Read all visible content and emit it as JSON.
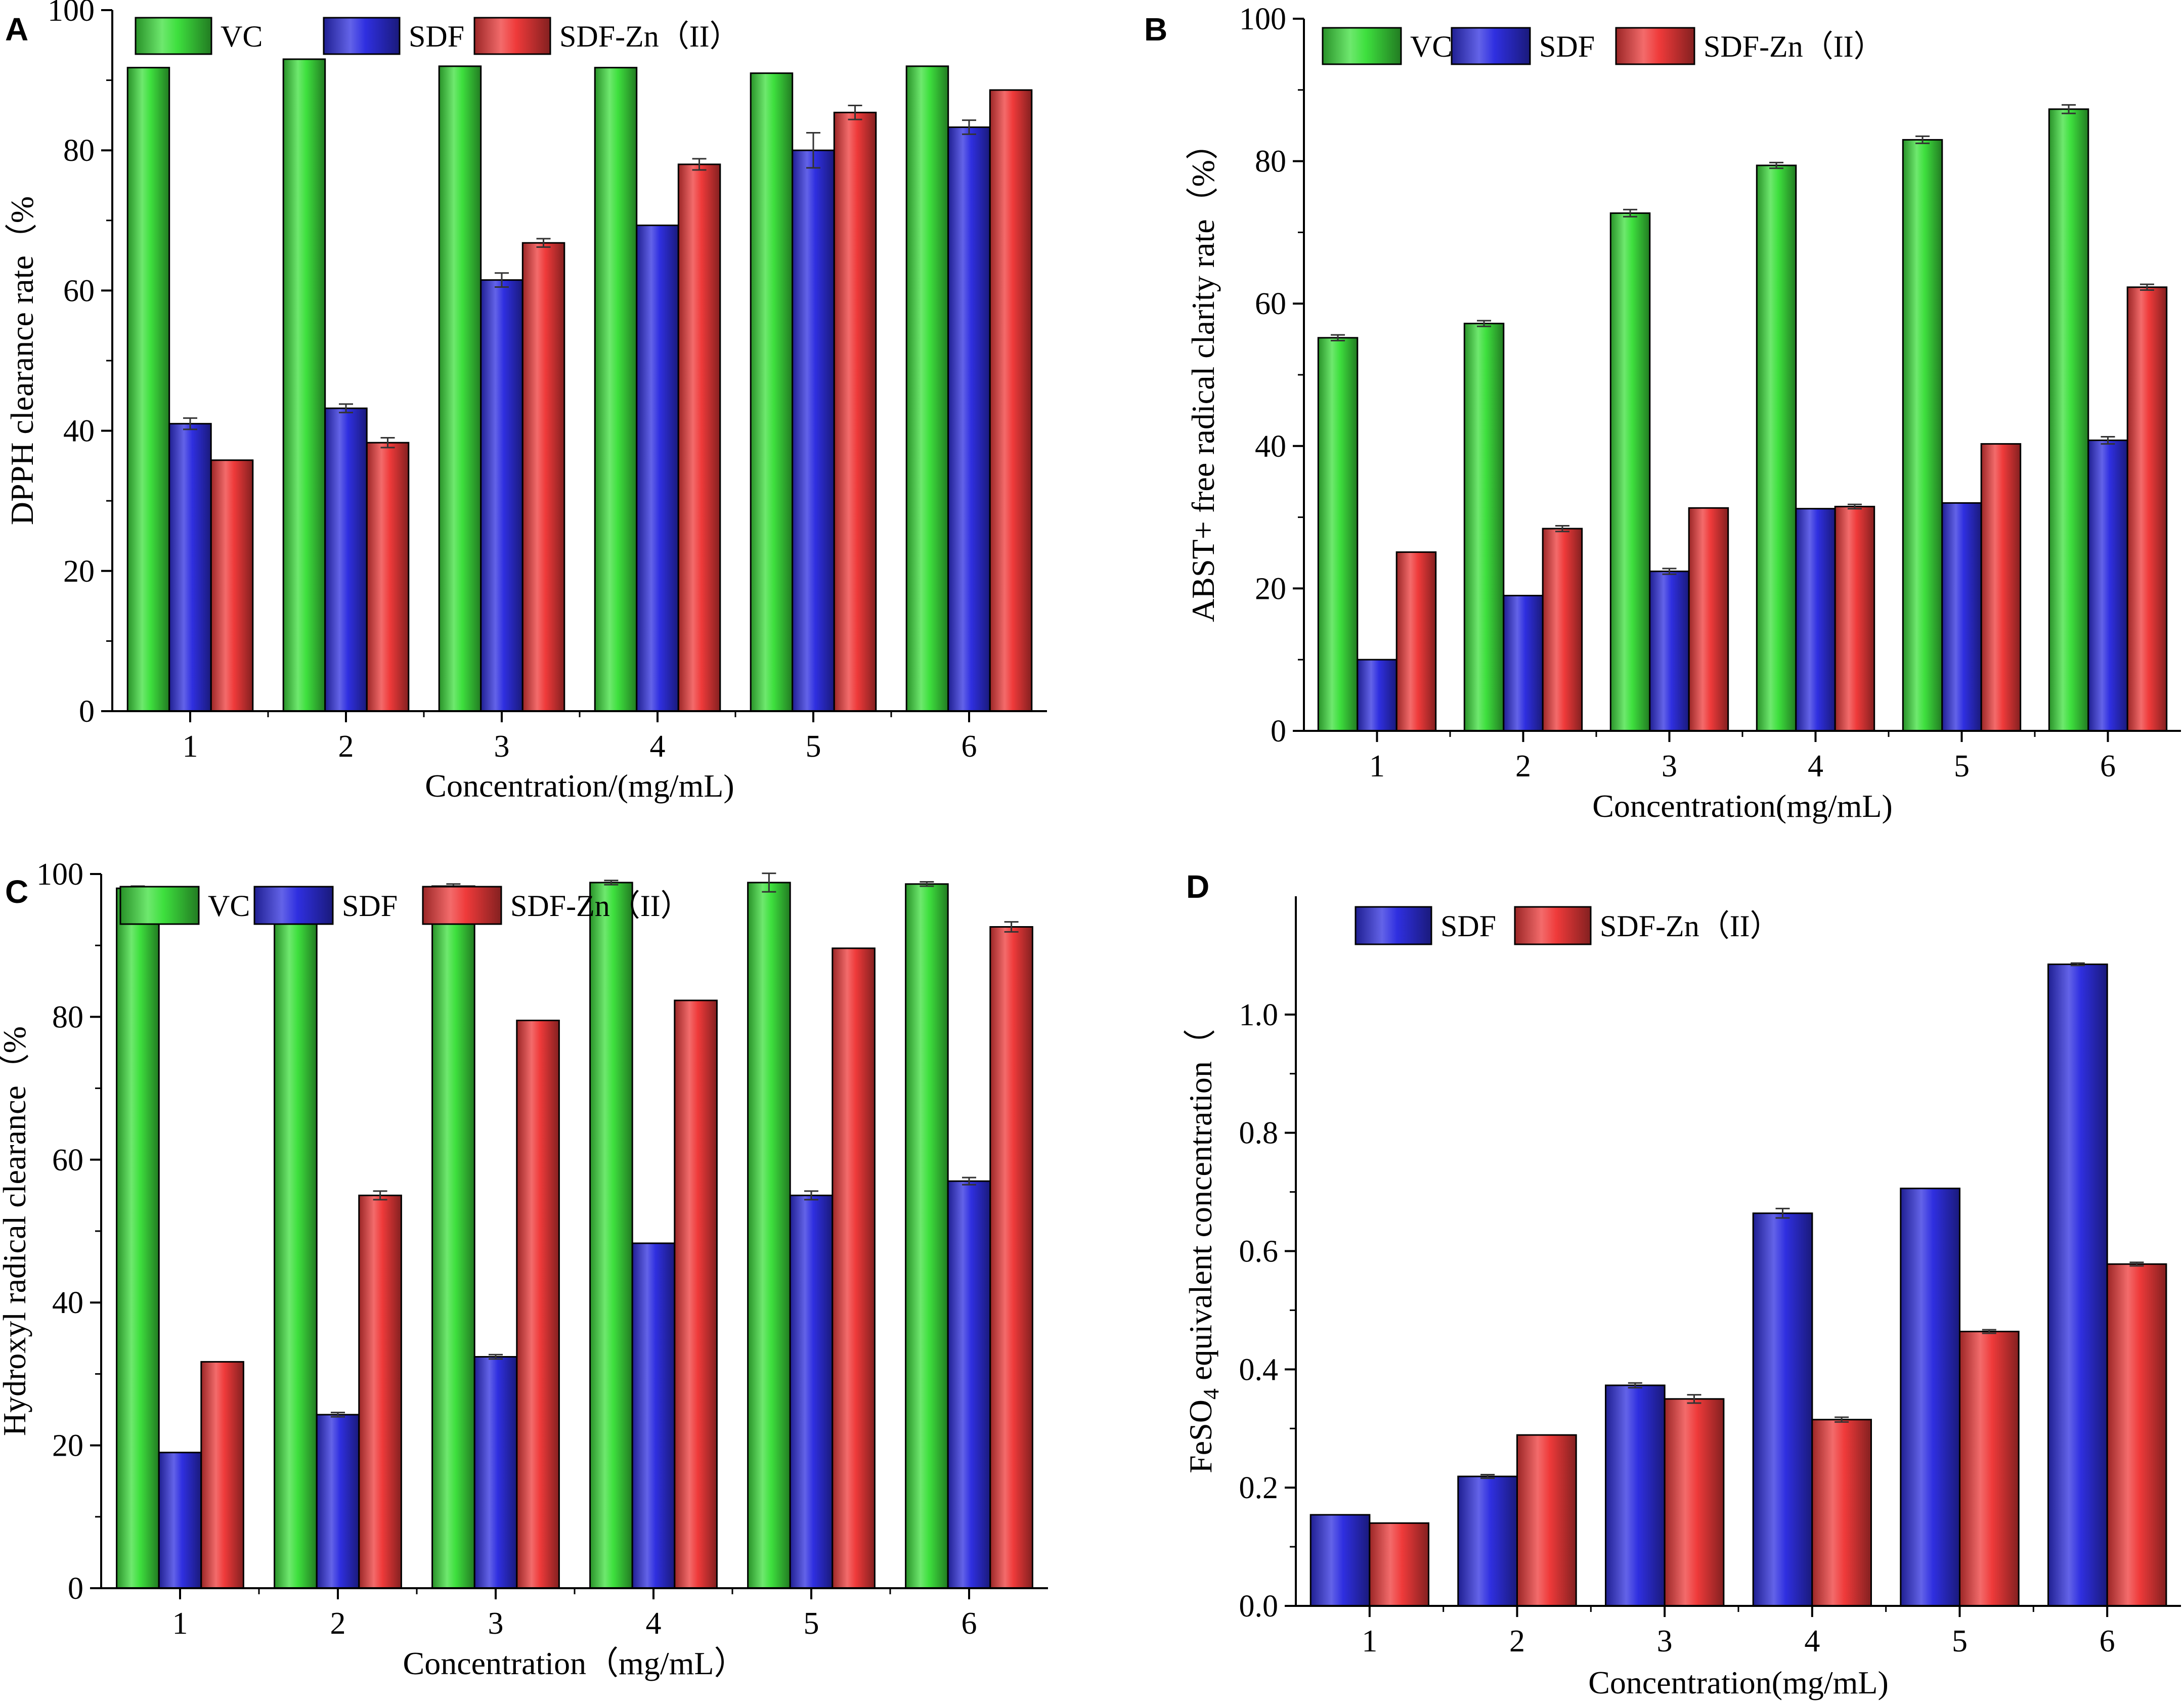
{
  "figure": {
    "panels": [
      "A",
      "B",
      "C",
      "D"
    ]
  },
  "colors": {
    "VC": "#3ee03e",
    "SDF": "#2f2fe0",
    "SDF-Zn（II）": "#ef3a3a",
    "axis": "#000000",
    "errorbar": "#333333"
  },
  "chart_data": [
    {
      "panel": "A",
      "type": "bar",
      "title": "",
      "xlabel": "Concentration/(mg/mL)",
      "ylabel": "DPPH clearance rate（%",
      "categories": [
        "1",
        "2",
        "3",
        "4",
        "5",
        "6"
      ],
      "ylim": [
        0,
        100
      ],
      "yticks": [
        0,
        20,
        40,
        60,
        80,
        100
      ],
      "ytick_labels": [
        "0",
        "20",
        "40",
        "60",
        "80",
        "100"
      ],
      "legend_position": "top-left",
      "series": [
        {
          "name": "VC",
          "legend_label": "VC",
          "color_key": "VC",
          "values": [
            91.8,
            93.0,
            92.0,
            91.8,
            91.0,
            92.0
          ],
          "errors": [
            0,
            0,
            0,
            0,
            0,
            0
          ]
        },
        {
          "name": "SDF",
          "legend_label": "SDF",
          "color_key": "SDF",
          "values": [
            41.0,
            43.2,
            61.5,
            69.3,
            80.0,
            83.3
          ],
          "errors": [
            0.8,
            0.6,
            1.0,
            0,
            2.5,
            1.0
          ]
        },
        {
          "name": "SDF-Zn（II）",
          "legend_label": "SDF-Zn（II）",
          "color_key": "SDF-Zn（II）",
          "values": [
            35.8,
            38.3,
            66.8,
            78.0,
            85.4,
            88.6
          ],
          "errors": [
            0,
            0.7,
            0.6,
            0.8,
            1.0,
            0
          ]
        }
      ]
    },
    {
      "panel": "B",
      "type": "bar",
      "title": "",
      "xlabel": "Concentration(mg/mL)",
      "ylabel": "ABST+ free radical clarity rate（%）",
      "categories": [
        "1",
        "2",
        "3",
        "4",
        "5",
        "6"
      ],
      "ylim": [
        0,
        100
      ],
      "yticks": [
        0,
        20,
        40,
        60,
        80,
        100
      ],
      "ytick_labels": [
        "0",
        "20",
        "40",
        "60",
        "80",
        "100"
      ],
      "legend_position": "top-left",
      "series": [
        {
          "name": "VC",
          "legend_label": "VC",
          "color_key": "VC",
          "values": [
            55.2,
            57.2,
            72.7,
            79.4,
            83.0,
            87.3
          ],
          "errors": [
            0.4,
            0.4,
            0.5,
            0.4,
            0.5,
            0.6
          ]
        },
        {
          "name": "SDF",
          "legend_label": "SDF",
          "color_key": "SDF",
          "values": [
            10.0,
            19.0,
            22.4,
            31.2,
            32.0,
            40.8
          ],
          "errors": [
            0,
            0,
            0.4,
            0,
            0,
            0.5
          ]
        },
        {
          "name": "SDF-Zn（II）",
          "legend_label": "SDF-Zn（II）",
          "color_key": "SDF-Zn（II）",
          "values": [
            25.1,
            28.4,
            31.3,
            31.5,
            40.3,
            62.3
          ],
          "errors": [
            0,
            0.4,
            0,
            0.3,
            0,
            0.4
          ]
        }
      ]
    },
    {
      "panel": "C",
      "type": "bar",
      "title": "",
      "xlabel": "Concentration（mg/mL）",
      "ylabel": "Hydroxyl radical clearance（%",
      "categories": [
        "1",
        "2",
        "3",
        "4",
        "5",
        "6"
      ],
      "ylim": [
        0,
        100
      ],
      "yticks": [
        0,
        20,
        40,
        60,
        80,
        100
      ],
      "ytick_labels": [
        "0",
        "20",
        "40",
        "60",
        "80",
        "100"
      ],
      "legend_position": "top-left",
      "series": [
        {
          "name": "VC",
          "legend_label": "VC",
          "color_key": "VC",
          "values": [
            98.0,
            97.9,
            98.3,
            98.8,
            98.8,
            98.6
          ],
          "errors": [
            0.3,
            0,
            0.3,
            0.3,
            1.3,
            0.3
          ]
        },
        {
          "name": "SDF",
          "legend_label": "SDF",
          "color_key": "SDF",
          "values": [
            19.0,
            24.3,
            32.4,
            48.3,
            55.0,
            57.0
          ],
          "errors": [
            0,
            0.3,
            0.3,
            0,
            0.6,
            0.5
          ]
        },
        {
          "name": "SDF-Zn（II）",
          "legend_label": "SDF-Zn（II）",
          "color_key": "SDF-Zn（II）",
          "values": [
            31.7,
            55.0,
            79.5,
            82.3,
            89.6,
            92.6
          ],
          "errors": [
            0,
            0.6,
            0,
            0,
            0,
            0.7
          ]
        }
      ]
    },
    {
      "panel": "D",
      "type": "bar",
      "title": "",
      "xlabel": "Concentration(mg/mL)",
      "ylabel_main": "FeSO",
      "ylabel_sub": "4",
      "ylabel_rest": " equivalent concentration（",
      "categories": [
        "1",
        "2",
        "3",
        "4",
        "5",
        "6"
      ],
      "ylim": [
        0,
        1.2
      ],
      "yticks": [
        0.0,
        0.2,
        0.4,
        0.6,
        0.8,
        1.0
      ],
      "ytick_labels": [
        "0.0",
        "0.2",
        "0.4",
        "0.6",
        "0.8",
        "1.0"
      ],
      "legend_position": "top-left",
      "series": [
        {
          "name": "SDF",
          "legend_label": "SDF",
          "color_key": "SDF",
          "values": [
            0.154,
            0.219,
            0.373,
            0.664,
            0.706,
            1.085
          ],
          "errors": [
            0,
            0.003,
            0.004,
            0.008,
            0,
            0.002
          ]
        },
        {
          "name": "SDF-Zn（II）",
          "legend_label": "SDF-Zn（II）",
          "color_key": "SDF-Zn（II）",
          "values": [
            0.14,
            0.289,
            0.35,
            0.315,
            0.464,
            0.578
          ],
          "errors": [
            0,
            0,
            0.007,
            0.004,
            0.003,
            0.003
          ]
        }
      ]
    }
  ]
}
